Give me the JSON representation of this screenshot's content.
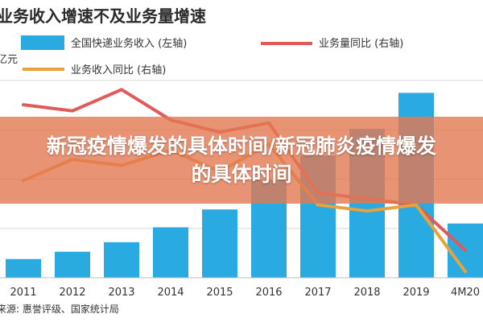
{
  "colors": {
    "bar": "#29ABE2",
    "line_volume": "#E05A5A",
    "line_revenue": "#E9A23B",
    "grid": "#d7d7d7",
    "banner": "#E47852"
  },
  "overlay": {
    "text": "新冠疫情爆发的具体时间/新冠肺炎疫情爆发的具体时间"
  },
  "chart_data": {
    "type": "bar",
    "title": "业务收入增速不及业务量增速",
    "ylabel": "亿元",
    "source": "来源: 惠誉评级、国家统计局",
    "categories": [
      "2011",
      "2012",
      "2013",
      "2014",
      "2015",
      "2016",
      "2017",
      "2018",
      "2019",
      "4M20"
    ],
    "ylim": [
      0,
      8000
    ],
    "y2lim": [
      0,
      65
    ],
    "grid": true,
    "legend_position": "top",
    "series": [
      {
        "name": "全国快递业务收入 (左轴)",
        "type": "bar",
        "axis": "left",
        "values": [
          758,
          1055,
          1442,
          2045,
          2770,
          3974,
          4957,
          6038,
          7498,
          2200
        ]
      },
      {
        "name": "业务量同比 (右轴)",
        "type": "line",
        "axis": "right",
        "values": [
          57,
          55,
          62,
          52,
          48,
          51,
          28,
          26,
          24,
          9
        ]
      },
      {
        "name": "业务收入同比 (右轴)",
        "type": "line",
        "axis": "right",
        "values": [
          32,
          39,
          37,
          42,
          35,
          44,
          24,
          22,
          24,
          2
        ]
      }
    ]
  }
}
